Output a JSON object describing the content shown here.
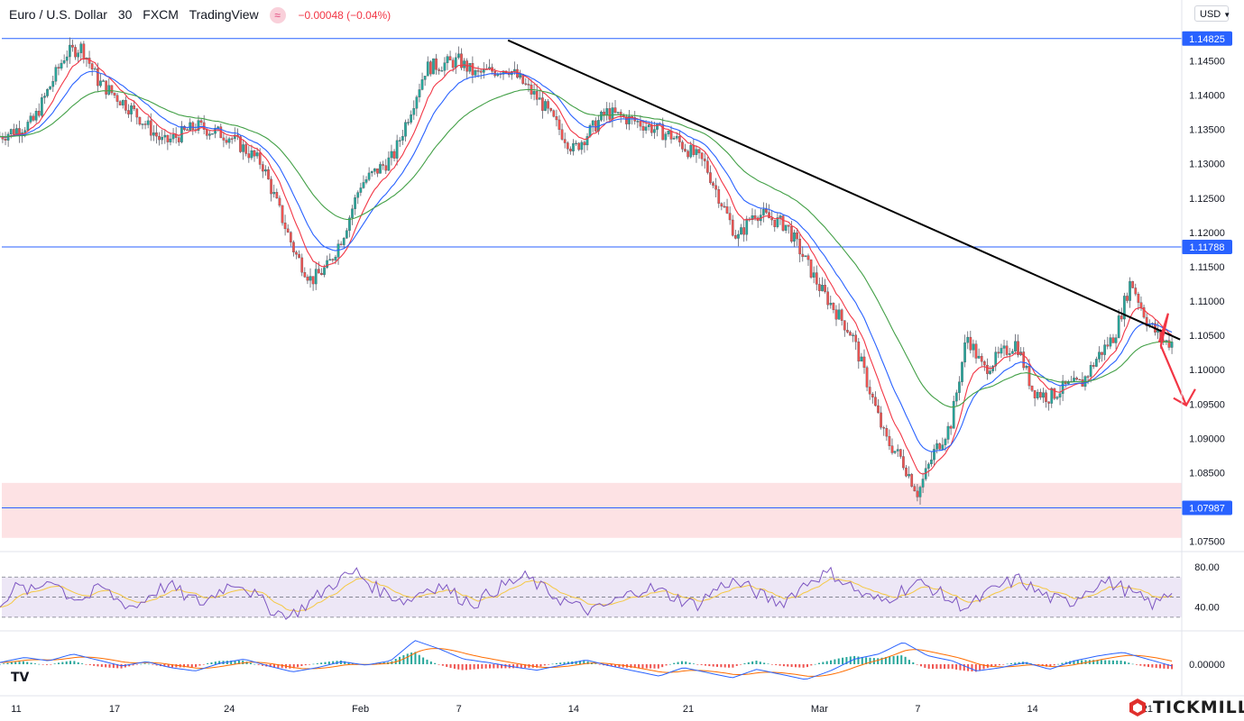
{
  "header": {
    "symbol": "Euro / U.S. Dollar",
    "interval": "30",
    "exchange": "FXCM",
    "source": "TradingView",
    "change": "−0.00048 (−0.04%)"
  },
  "currency_selector": {
    "label": "USD"
  },
  "brand": {
    "name": "TICKMILL"
  },
  "colors": {
    "ema_fast": "#f23645",
    "ema_mid": "#2962ff",
    "ema_slow": "#43a047",
    "trendline": "#000000",
    "level_line": "#2962ff",
    "zone": "#fde2e4",
    "rsi_line": "#7e57c2",
    "rsi_ma": "#f5c842",
    "rsi_band": "#ede7f6",
    "arrow": "#f23645"
  },
  "chart_data": [
    {
      "type": "line",
      "subtype": "candlestick",
      "title": "",
      "x_ticks": [
        "11",
        "17",
        "24",
        "Feb",
        "7",
        "14",
        "21",
        "Mar",
        "7",
        "14",
        "21"
      ],
      "y_ticks": [
        "1.14500",
        "1.14000",
        "1.13500",
        "1.13000",
        "1.12500",
        "1.12000",
        "1.11500",
        "1.11000",
        "1.10500",
        "1.10000",
        "1.09500",
        "1.09000",
        "1.08500",
        "1.07500"
      ],
      "ylim": [
        1.0735,
        1.1515
      ],
      "horizontal_levels": [
        {
          "value": 1.14825,
          "label": "1.14825"
        },
        {
          "value": 1.11788,
          "label": "1.11788"
        },
        {
          "value": 1.07987,
          "label": "1.07987"
        }
      ],
      "support_zone": [
        1.0755,
        1.0835
      ],
      "trendline": {
        "from": {
          "date": "Feb 10",
          "price": 1.148
        },
        "to": {
          "date": "Mar 23",
          "price": 1.1044
        }
      },
      "projection": "down",
      "series": [
        {
          "kind": "price",
          "x": [
            "Jan 10",
            "Jan 12",
            "Jan 13",
            "Jan 14",
            "Jan 15",
            "Jan 16",
            "Jan 18",
            "Jan 20",
            "Jan 22",
            "Jan 24",
            "Jan 26",
            "Jan 28",
            "Jan 29",
            "Jan 30",
            "Jan 31",
            "Feb 1",
            "Feb 3",
            "Feb 5",
            "Feb 7",
            "Feb 8",
            "Feb 10",
            "Feb 12",
            "Feb 14",
            "Feb 16",
            "Feb 18",
            "Feb 20",
            "Feb 22",
            "Feb 24",
            "Feb 25",
            "Feb 27",
            "Mar 1",
            "Mar 3",
            "Mar 5",
            "Mar 6",
            "Mar 7",
            "Mar 8",
            "Mar 9",
            "Mar 10",
            "Mar 11",
            "Mar 13",
            "Mar 14",
            "Mar 15",
            "Mar 16",
            "Mar 17",
            "Mar 18",
            "Mar 19",
            "Mar 20",
            "Mar 21",
            "Mar 22"
          ],
          "values": [
            1.134,
            1.136,
            1.141,
            1.146,
            1.147,
            1.142,
            1.138,
            1.133,
            1.1355,
            1.134,
            1.13,
            1.117,
            1.113,
            1.115,
            1.12,
            1.127,
            1.131,
            1.144,
            1.145,
            1.143,
            1.144,
            1.139,
            1.132,
            1.1375,
            1.136,
            1.134,
            1.13,
            1.119,
            1.123,
            1.121,
            1.112,
            1.105,
            1.09,
            1.087,
            1.082,
            1.088,
            1.092,
            1.105,
            1.1,
            1.104,
            1.097,
            1.096,
            1.0975,
            1.098,
            1.102,
            1.105,
            1.113,
            1.107,
            1.104
          ]
        }
      ]
    },
    {
      "type": "line",
      "title": "",
      "y_ticks": [
        "80.00",
        "40.00"
      ],
      "ylim": [
        20,
        90
      ],
      "bands": [
        30,
        50,
        70
      ],
      "series": [
        {
          "values": [
            45,
            60,
            55,
            70,
            52,
            48,
            60,
            46,
            40,
            55,
            62,
            50,
            44,
            58,
            66,
            52,
            38,
            30,
            42,
            55,
            68,
            75,
            60,
            52,
            46,
            58,
            62,
            50,
            44,
            56,
            64,
            70,
            58,
            48,
            40,
            36,
            44,
            52,
            60,
            55,
            48,
            42,
            56,
            66,
            60,
            50,
            44,
            58,
            70,
            74,
            62,
            50,
            46,
            56,
            64,
            58,
            46,
            40,
            52,
            62,
            68,
            56,
            48,
            44,
            58,
            66,
            60,
            50,
            42,
            56
          ]
        }
      ]
    },
    {
      "type": "line",
      "title": "",
      "y_ticks": [
        "0.00000"
      ],
      "ylim": [
        -0.0035,
        0.0035
      ],
      "series": [
        {
          "values": [
            0.0002,
            0.0008,
            0.0004,
            0.0012,
            0.0005,
            -0.0002,
            0.0003,
            -0.0004,
            -0.0008,
            0.0001,
            0.0006,
            -0.0002,
            -0.0009,
            -0.0004,
            0.0003,
            -0.0001,
            0.0004,
            0.0028,
            0.0018,
            0.0006,
            0.0002,
            -0.0003,
            -0.0007,
            -0.0001,
            0.0005,
            -0.0002,
            -0.0008,
            -0.0014,
            -0.0004,
            -0.001,
            -0.0016,
            -0.0006,
            -0.0012,
            -0.0018,
            -0.0008,
            0.0006,
            0.0012,
            0.0026,
            0.001,
            0.0004,
            -0.0008,
            -0.0004,
            0.0002,
            -0.0006,
            0.0004,
            0.001,
            0.0014,
            0.0006,
            -0.0002
          ]
        }
      ]
    }
  ]
}
